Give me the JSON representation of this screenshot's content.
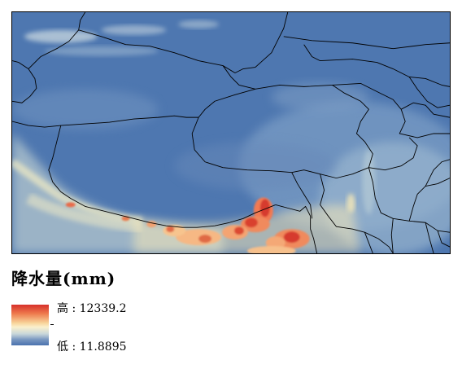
{
  "legend": {
    "title": "降水量(mm)",
    "high_label": "高 : 12339.2",
    "low_label": "低 : 11.8895",
    "colors": {
      "high": "#d7302a",
      "mid_high": "#ee7a4d",
      "mid": "#fbf0cc",
      "mid_low": "#7897c0",
      "low": "#4a72ae"
    }
  },
  "map": {
    "subject": "precipitation raster with administrative boundaries",
    "high_value": 12339.2,
    "low_value": 11.8895,
    "unit": "mm"
  }
}
